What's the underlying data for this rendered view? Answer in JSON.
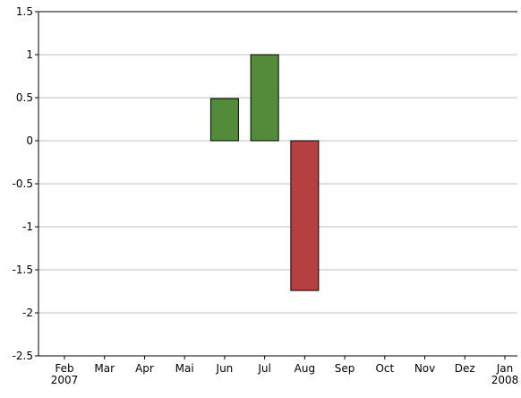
{
  "chart_data": {
    "type": "bar",
    "categories": [
      "Feb\n2007",
      "Mar",
      "Apr",
      "Mai",
      "Jun",
      "Jul",
      "Aug",
      "Sep",
      "Oct",
      "Nov",
      "Dez",
      "Jan\n2008"
    ],
    "values": [
      null,
      null,
      null,
      null,
      0.49,
      1,
      -1.74,
      null,
      null,
      null,
      null,
      null
    ],
    "positive_color": "#548b3a",
    "negative_color": "#b63f3f",
    "ylim": [
      -2.5,
      1.5
    ],
    "yticks": [
      -2.5,
      -2,
      -1.5,
      -1,
      -0.5,
      0,
      0.5,
      1,
      1.5
    ],
    "grid": true
  }
}
